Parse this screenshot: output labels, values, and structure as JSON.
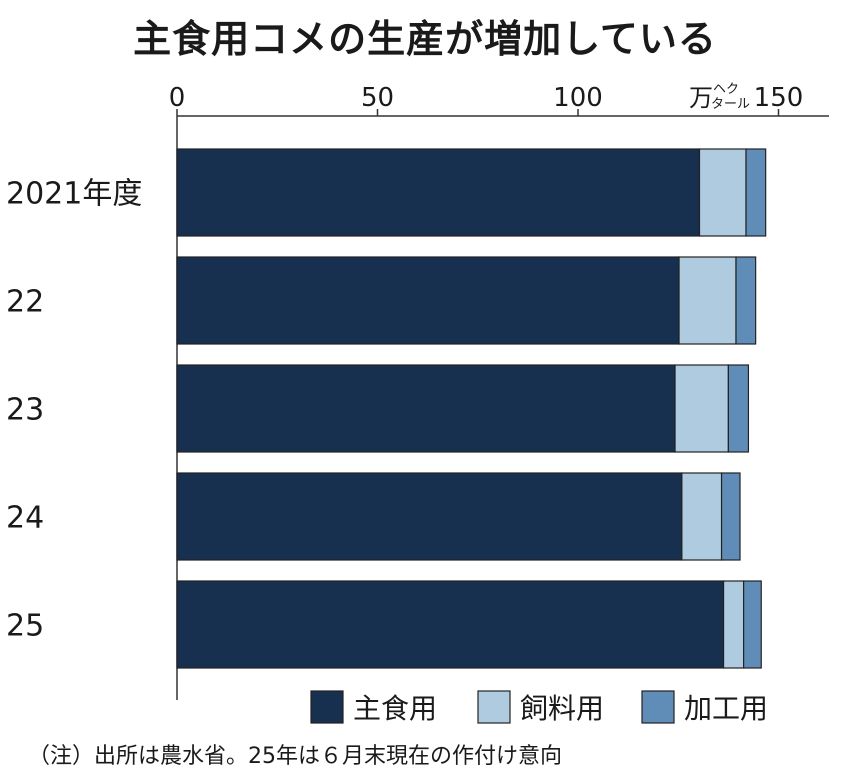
{
  "chart_data": {
    "type": "bar",
    "orientation": "horizontal",
    "stacked": true,
    "title": "主食用コメの生産が増加している",
    "unit": "万ヘクタール",
    "unit_main": "万",
    "unit_small_top": "ヘク",
    "unit_small_bottom": "タール",
    "categories": [
      "2021年度",
      "22",
      "23",
      "24",
      "25"
    ],
    "series": [
      {
        "name": "主食用",
        "color": "#17304f",
        "values": [
          130.3,
          125.2,
          124.2,
          125.9,
          136.3
        ]
      },
      {
        "name": "飼料用",
        "color": "#aecbe0",
        "values": [
          11.6,
          14.2,
          13.3,
          9.9,
          5.0
        ]
      },
      {
        "name": "加工用",
        "color": "#5f8db8",
        "values": [
          4.9,
          4.9,
          5.0,
          4.6,
          4.4
        ]
      }
    ],
    "xlim": [
      0,
      162
    ],
    "xticks": [
      0,
      50,
      100,
      150
    ],
    "xtick_labels": [
      "0",
      "50",
      "100",
      "150"
    ],
    "grid": false,
    "legend_position": "bottom-right"
  },
  "note": "（注）出所は農水省。25年は６月末現在の作付け意向"
}
